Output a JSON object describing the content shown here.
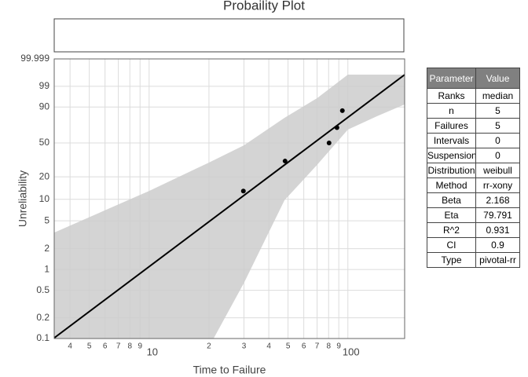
{
  "chart_data": {
    "type": "scatter",
    "title": "Probaility Plot",
    "x_label": "Time to Failure",
    "y_label": "Unreliability",
    "xscale": "log",
    "yscale": "weibull",
    "xlim": [
      3.33,
      193
    ],
    "ylim": [
      0.1,
      99.999
    ],
    "xticks": [
      4,
      5,
      6,
      7,
      8,
      9,
      10,
      {
        "value": 20,
        "label": "2"
      },
      {
        "value": 30,
        "label": "3"
      },
      {
        "value": 40,
        "label": "4"
      },
      {
        "value": 50,
        "label": "5"
      },
      {
        "value": 60,
        "label": "6"
      },
      {
        "value": 70,
        "label": "7"
      },
      {
        "value": 80,
        "label": "8"
      },
      {
        "value": 90,
        "label": "9"
      },
      100
    ],
    "yticks": [
      0.1,
      0.2,
      0.5,
      1,
      2,
      5,
      10,
      20,
      50,
      90,
      99,
      99.999
    ],
    "grid": true,
    "series": [
      {
        "color": "#000000",
        "x": [
          29.8,
          48.3,
          80.4,
          88.1,
          93.8
        ],
        "values": [
          12.96,
          31.48,
          50,
          68.52,
          87.04
        ]
      }
    ],
    "fit": {
      "color": "#000000",
      "x": [
        3.33,
        193
      ],
      "values": [
        0.102,
        99.887
      ]
    },
    "band": {
      "color": "#cccccc",
      "upper": {
        "x": [
          3.33,
          10,
          20,
          30,
          48,
          70,
          100,
          193
        ],
        "values": [
          3.4,
          13,
          30.2,
          47.3,
          79.9,
          95.5,
          99.89,
          99.89
        ]
      },
      "lower": {
        "x": [
          21.1,
          30,
          48,
          70,
          100,
          140,
          193
        ],
        "values": [
          0.1,
          0.64,
          9.7,
          28.3,
          66.1,
          81.6,
          91.9
        ]
      }
    }
  },
  "table": {
    "header": [
      "Parameter",
      "Value"
    ],
    "rows": [
      [
        "Ranks",
        "median"
      ],
      [
        "n",
        "5"
      ],
      [
        "Failures",
        "5"
      ],
      [
        "Intervals",
        "0"
      ],
      [
        "Suspensions",
        "0"
      ],
      [
        "Distribution",
        "weibull"
      ],
      [
        "Method",
        "rr-xony"
      ],
      [
        "Beta",
        "2.168"
      ],
      [
        "Eta",
        "79.791"
      ],
      [
        "R^2",
        "0.931"
      ],
      [
        "CI",
        "0.9"
      ],
      [
        "Type",
        "pivotal-rr"
      ]
    ]
  }
}
